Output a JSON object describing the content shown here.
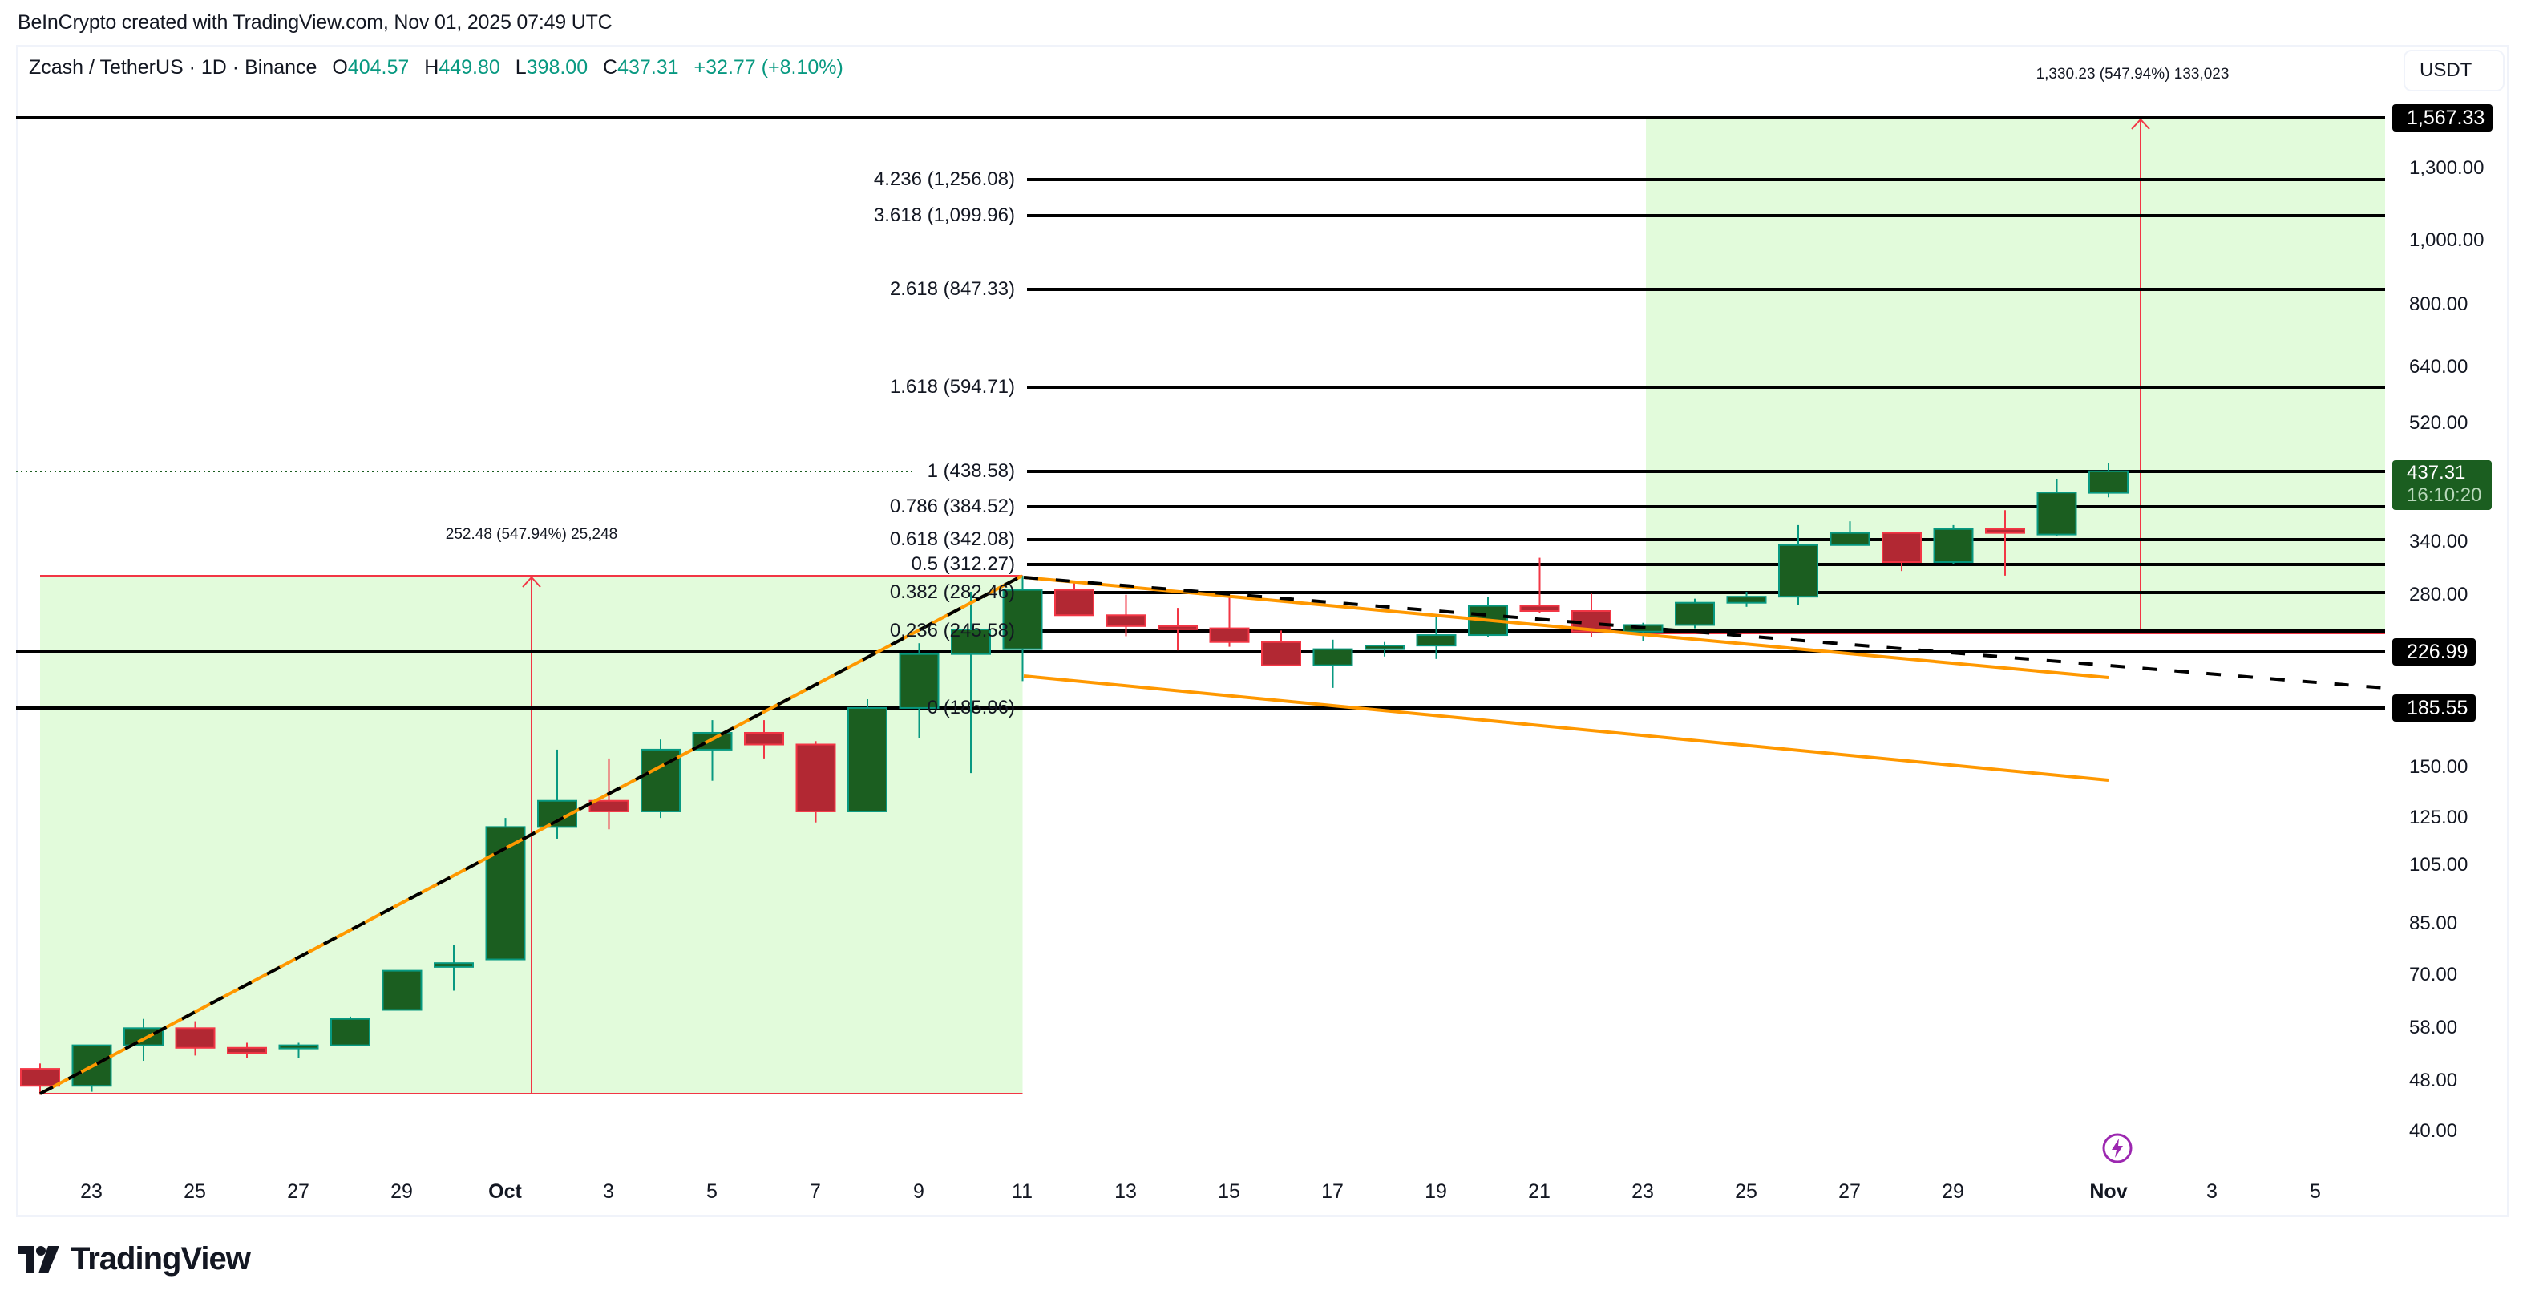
{
  "attribution": "BeInCrypto created with TradingView.com, Nov 01, 2025 07:49 UTC",
  "legend": {
    "symbol": "Zcash / TetherUS · 1D · Binance",
    "o_label": "O",
    "o": "404.57",
    "h_label": "H",
    "h": "449.80",
    "l_label": "L",
    "l": "398.00",
    "c_label": "C",
    "c": "437.31",
    "change": "+32.77 (+8.10%)"
  },
  "currency_button": "USDT",
  "price_axis": {
    "ticks": [
      {
        "label": "1,300.00",
        "y": 210
      },
      {
        "label": "1,000.00",
        "y": 300
      },
      {
        "label": "800.00",
        "y": 380
      },
      {
        "label": "640.00",
        "y": 458
      },
      {
        "label": "520.00",
        "y": 528
      },
      {
        "label": "340.00",
        "y": 676
      },
      {
        "label": "280.00",
        "y": 742
      },
      {
        "label": "150.00",
        "y": 957
      },
      {
        "label": "125.00",
        "y": 1020
      },
      {
        "label": "105.00",
        "y": 1079
      },
      {
        "label": "85.00",
        "y": 1152
      },
      {
        "label": "70.00",
        "y": 1216
      },
      {
        "label": "58.00",
        "y": 1282
      },
      {
        "label": "48.00",
        "y": 1348
      },
      {
        "label": "40.00",
        "y": 1411
      }
    ],
    "badges": [
      {
        "label": "1,567.33",
        "y": 147
      },
      {
        "label": "226.99",
        "y": 813
      },
      {
        "label": "185.55",
        "y": 883
      }
    ],
    "last_price": "437.31",
    "countdown": "16:10:20"
  },
  "time_axis": {
    "ticks": [
      {
        "label": "23",
        "x": 114,
        "bold": false
      },
      {
        "label": "25",
        "x": 243,
        "bold": false
      },
      {
        "label": "27",
        "x": 372,
        "bold": false
      },
      {
        "label": "29",
        "x": 501,
        "bold": false
      },
      {
        "label": "Oct",
        "x": 630,
        "bold": true
      },
      {
        "label": "3",
        "x": 759,
        "bold": false
      },
      {
        "label": "5",
        "x": 888,
        "bold": false
      },
      {
        "label": "7",
        "x": 1017,
        "bold": false
      },
      {
        "label": "9",
        "x": 1146,
        "bold": false
      },
      {
        "label": "11",
        "x": 1275,
        "bold": false
      },
      {
        "label": "13",
        "x": 1404,
        "bold": false
      },
      {
        "label": "15",
        "x": 1533,
        "bold": false
      },
      {
        "label": "17",
        "x": 1662,
        "bold": false
      },
      {
        "label": "19",
        "x": 1791,
        "bold": false
      },
      {
        "label": "21",
        "x": 1920,
        "bold": false
      },
      {
        "label": "23",
        "x": 2049,
        "bold": false
      },
      {
        "label": "25",
        "x": 2178,
        "bold": false
      },
      {
        "label": "27",
        "x": 2307,
        "bold": false
      },
      {
        "label": "29",
        "x": 2436,
        "bold": false
      },
      {
        "label": "Nov",
        "x": 2630,
        "bold": true
      },
      {
        "label": "3",
        "x": 2759,
        "bold": false
      },
      {
        "label": "5",
        "x": 2888,
        "bold": false
      }
    ]
  },
  "fib_levels": [
    {
      "label": "4.236 (1,256.08)",
      "y": 224
    },
    {
      "label": "3.618 (1,099.96)",
      "y": 269
    },
    {
      "label": "2.618 (847.33)",
      "y": 361
    },
    {
      "label": "1.618 (594.71)",
      "y": 483
    },
    {
      "label": "1 (438.58)",
      "y": 588
    },
    {
      "label": "0.786 (384.52)",
      "y": 632
    },
    {
      "label": "0.618 (342.08)",
      "y": 673
    },
    {
      "label": "0.5 (312.27)",
      "y": 704
    },
    {
      "label": "0.382 (282.46)",
      "y": 739
    },
    {
      "label": "0.236 (245.58)",
      "y": 787
    },
    {
      "label": "0 (185.96)",
      "y": 883
    }
  ],
  "measurements": [
    {
      "label": "252.48 (547.94%) 25,248",
      "x": 663,
      "y": 668
    },
    {
      "label": "1,330.23 (547.94%) 133,023",
      "x": 2660,
      "y": 94
    }
  ],
  "colors": {
    "bull_body": "#1b5e20",
    "bull_border": "#089981",
    "bear_body": "#b22833",
    "bear_border": "#f23645",
    "range_fill": "#e2fbdb",
    "range_border": "#f23645",
    "wedge": "#ff9800",
    "fib_line": "#000000",
    "last_price_dotted": "#1b5e20",
    "flash": "#9c27b0"
  },
  "brand": "TradingView",
  "chart_data": {
    "type": "candlestick",
    "title": "Zcash / TetherUS · 1D · Binance",
    "xlabel": "",
    "ylabel": "USDT",
    "y_scale": "log",
    "ylim": [
      38,
      1600
    ],
    "grid": false,
    "x": [
      "Sep 22",
      "Sep 23",
      "Sep 24",
      "Sep 25",
      "Sep 26",
      "Sep 27",
      "Sep 28",
      "Sep 29",
      "Sep 30",
      "Oct 1",
      "Oct 2",
      "Oct 3",
      "Oct 4",
      "Oct 5",
      "Oct 6",
      "Oct 7",
      "Oct 8",
      "Oct 9",
      "Oct 10",
      "Oct 11",
      "Oct 12",
      "Oct 13",
      "Oct 14",
      "Oct 15",
      "Oct 16",
      "Oct 17",
      "Oct 18",
      "Oct 19",
      "Oct 20",
      "Oct 21",
      "Oct 22",
      "Oct 23",
      "Oct 24",
      "Oct 25",
      "Oct 26",
      "Oct 27",
      "Oct 28",
      "Oct 29",
      "Oct 30",
      "Oct 31",
      "Nov 1"
    ],
    "series": [
      {
        "name": "ZECUSDT",
        "ohlc": [
          [
            50.5,
            51.5,
            46.0,
            47.5
          ],
          [
            47.5,
            52.0,
            46.5,
            55.0
          ],
          [
            55.0,
            60.5,
            52.0,
            58.5
          ],
          [
            58.5,
            60.0,
            53.0,
            54.5
          ],
          [
            54.5,
            55.5,
            52.5,
            53.5
          ],
          [
            54.5,
            55.5,
            52.5,
            55.0
          ],
          [
            55.0,
            61.0,
            55.0,
            60.5
          ],
          [
            62.5,
            72.0,
            62.5,
            72.0
          ],
          [
            73.0,
            79.0,
            67.0,
            74.0
          ],
          [
            75.0,
            125.0,
            75.0,
            121.0
          ],
          [
            121.0,
            160.0,
            116.0,
            133.0
          ],
          [
            133.0,
            155.0,
            120.0,
            128.0
          ],
          [
            128.0,
            166.0,
            125.0,
            160.0
          ],
          [
            160.0,
            178.0,
            143.0,
            170.0
          ],
          [
            170.0,
            178.0,
            155.0,
            163.0
          ],
          [
            163.0,
            165.0,
            123.0,
            128.0
          ],
          [
            128.0,
            192.0,
            128.0,
            186.0
          ],
          [
            186.0,
            235.0,
            167.0,
            226.0
          ],
          [
            226.0,
            283.0,
            147.0,
            247.0
          ],
          [
            230.0,
            300.0,
            205.0,
            285.0
          ],
          [
            285.0,
            292.0,
            260.0,
            260.0
          ],
          [
            260.0,
            280.0,
            241.0,
            250.0
          ],
          [
            250.0,
            267.0,
            229.0,
            248.0
          ],
          [
            248.0,
            278.0,
            232.0,
            236.0
          ],
          [
            236.0,
            246.0,
            217.0,
            217.0
          ],
          [
            217.0,
            238.0,
            200.0,
            230.0
          ],
          [
            230.0,
            236.0,
            224.0,
            233.0
          ],
          [
            233.0,
            258.0,
            222.0,
            242.0
          ],
          [
            242.0,
            278.0,
            240.0,
            269.0
          ],
          [
            269.0,
            320.0,
            262.0,
            264.0
          ],
          [
            264.0,
            281.0,
            240.0,
            245.0
          ],
          [
            245.0,
            253.0,
            237.0,
            251.0
          ],
          [
            251.0,
            276.0,
            248.0,
            272.0
          ],
          [
            272.0,
            283.0,
            268.0,
            278.0
          ],
          [
            278.0,
            360.0,
            270.0,
            335.0
          ],
          [
            335.0,
            365.0,
            335.0,
            350.0
          ],
          [
            350.0,
            351.0,
            305.0,
            315.0
          ],
          [
            315.0,
            360.0,
            313.0,
            355.0
          ],
          [
            355.0,
            380.0,
            300.0,
            350.0
          ],
          [
            348.0,
            425.0,
            346.0,
            405.0
          ],
          [
            404.57,
            449.8,
            398.0,
            437.31
          ]
        ]
      }
    ],
    "fib_extension": {
      "levels": [
        0,
        0.236,
        0.382,
        0.5,
        0.618,
        0.786,
        1,
        1.618,
        2.618,
        3.618,
        4.236
      ],
      "prices": [
        185.96,
        245.58,
        282.46,
        312.27,
        342.08,
        384.52,
        438.58,
        594.71,
        847.33,
        1099.96,
        1256.08
      ]
    },
    "horizontal_lines": [
      1567.33,
      226.99,
      185.55
    ],
    "measurements": [
      {
        "from": "Sep 22",
        "to": "Oct 11",
        "change": 252.48,
        "pct": 547.94,
        "ticks": 25248
      },
      {
        "from": "Oct 23",
        "to": "Nov 6",
        "change": 1330.23,
        "pct": 547.94,
        "ticks": 133023
      }
    ],
    "annotations": [
      "Falling wedge (orange)",
      "Dashed trendline"
    ],
    "last_price": 437.31
  }
}
